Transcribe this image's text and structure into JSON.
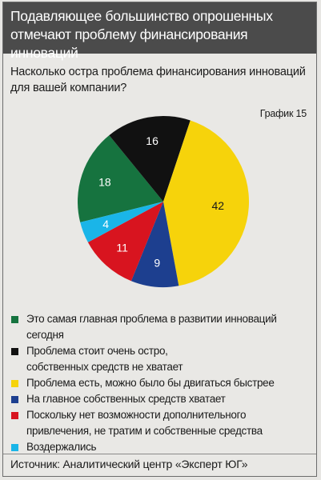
{
  "header": {
    "line1": "Подавляющее большинство опрошенных",
    "line2": "отмечают проблему финансирования инноваций"
  },
  "question": {
    "line1": "Насколько остра проблема финансирования инноваций",
    "line2": "для вашей компании?"
  },
  "chart_label": "График 15",
  "chart_data": {
    "type": "pie",
    "slices": [
      {
        "label": "Это самая главная проблема в развитии инноваций сегодня",
        "value": 18,
        "color": "#16733f",
        "text_color": "#ffffff"
      },
      {
        "label": "Проблема стоит очень остро, собственных средств не хватает",
        "value": 16,
        "color": "#111111",
        "text_color": "#ffffff"
      },
      {
        "label": "Проблема есть, можно было бы двигаться быстрее",
        "value": 42,
        "color": "#f6d30b",
        "text_color": "#1a1a1a"
      },
      {
        "label": "На главное собственных средств хватает",
        "value": 9,
        "color": "#1d3f8f",
        "text_color": "#ffffff"
      },
      {
        "label": "Поскольку нет возможности дополнительного привлечения, не тратим и собственные средства",
        "value": 11,
        "color": "#d8141f",
        "text_color": "#ffffff"
      },
      {
        "label": "Воздержались",
        "value": 4,
        "color": "#1ab5e8",
        "text_color": "#ffffff"
      }
    ]
  },
  "legend": [
    {
      "lines": [
        "Это самая главная проблема в развитии инноваций сегодня"
      ],
      "color": "#16733f"
    },
    {
      "lines": [
        "Проблема стоит очень остро,",
        "собственных средств не хватает"
      ],
      "color": "#111111"
    },
    {
      "lines": [
        "Проблема есть, можно было бы двигаться быстрее"
      ],
      "color": "#f6d30b"
    },
    {
      "lines": [
        "На главное собственных средств хватает"
      ],
      "color": "#1d3f8f"
    },
    {
      "lines": [
        "Поскольку нет возможности дополнительного",
        "привлечения, не тратим и собственные средства"
      ],
      "color": "#d8141f"
    },
    {
      "lines": [
        "Воздержались"
      ],
      "color": "#1ab5e8"
    }
  ],
  "source": "Источник: Аналитический центр «Эксперт ЮГ»"
}
